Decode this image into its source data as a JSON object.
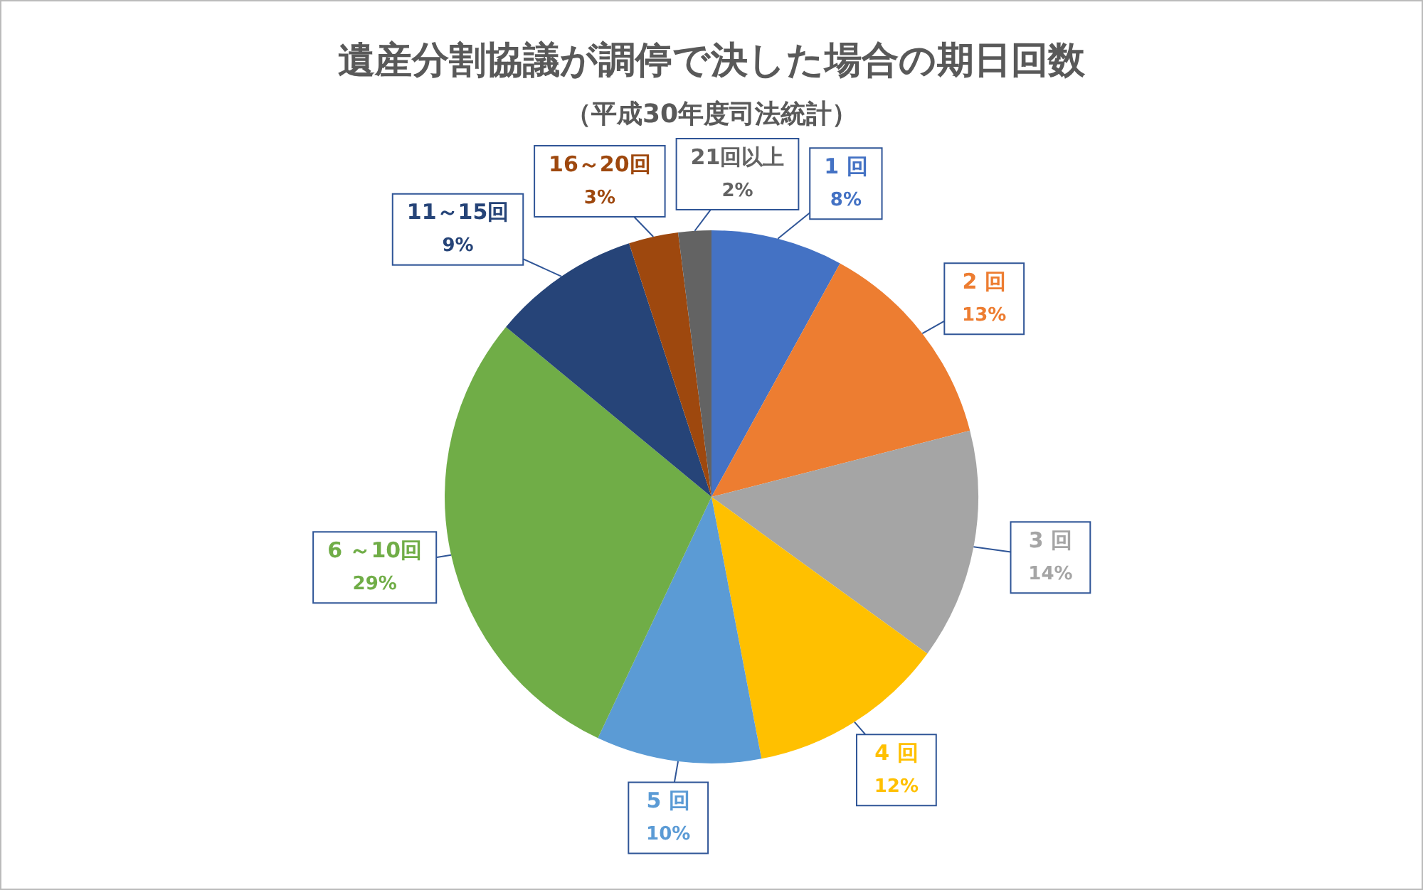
{
  "chart_data": {
    "type": "pie",
    "title": "遺産分割協議が調停で決した場合の期日回数",
    "subtitle": "（平成30年度司法統計）",
    "categories": [
      "1 回",
      "2 回",
      "3 回",
      "4 回",
      "5 回",
      "6 ～10回",
      "11～15回",
      "16～20回",
      "21回以上"
    ],
    "values": [
      8,
      13,
      14,
      12,
      10,
      29,
      9,
      3,
      2
    ],
    "value_labels": [
      "8%",
      "13%",
      "14%",
      "12%",
      "10%",
      "29%",
      "9%",
      "3%",
      "2%"
    ],
    "colors": [
      "#4472c4",
      "#ed7d31",
      "#a5a5a5",
      "#ffc000",
      "#5b9bd5",
      "#70ad47",
      "#264478",
      "#9e480e",
      "#636363"
    ],
    "legend": false
  }
}
